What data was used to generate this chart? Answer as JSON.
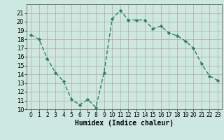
{
  "x": [
    0,
    1,
    2,
    3,
    4,
    5,
    6,
    7,
    8,
    9,
    10,
    11,
    12,
    13,
    14,
    15,
    16,
    17,
    18,
    19,
    20,
    21,
    22,
    23
  ],
  "y": [
    18.5,
    18.0,
    15.8,
    14.2,
    13.2,
    11.1,
    10.5,
    11.1,
    10.2,
    14.2,
    20.3,
    21.3,
    20.2,
    20.2,
    20.2,
    19.2,
    19.5,
    18.7,
    18.4,
    17.8,
    17.0,
    15.2,
    13.8,
    13.3
  ],
  "line_color": "#2d7d6b",
  "marker": "D",
  "marker_size": 2.2,
  "bg_color": "#cce8e0",
  "grid_color": "#b8a898",
  "xlabel": "Humidex (Indice chaleur)",
  "xlim": [
    -0.5,
    23.5
  ],
  "ylim": [
    10,
    22
  ],
  "yticks": [
    10,
    11,
    12,
    13,
    14,
    15,
    16,
    17,
    18,
    19,
    20,
    21
  ],
  "xticks": [
    0,
    1,
    2,
    3,
    4,
    5,
    6,
    7,
    8,
    9,
    10,
    11,
    12,
    13,
    14,
    15,
    16,
    17,
    18,
    19,
    20,
    21,
    22,
    23
  ],
  "xlabel_fontsize": 7.0,
  "tick_fontsize": 6.0,
  "linewidth": 1.0
}
